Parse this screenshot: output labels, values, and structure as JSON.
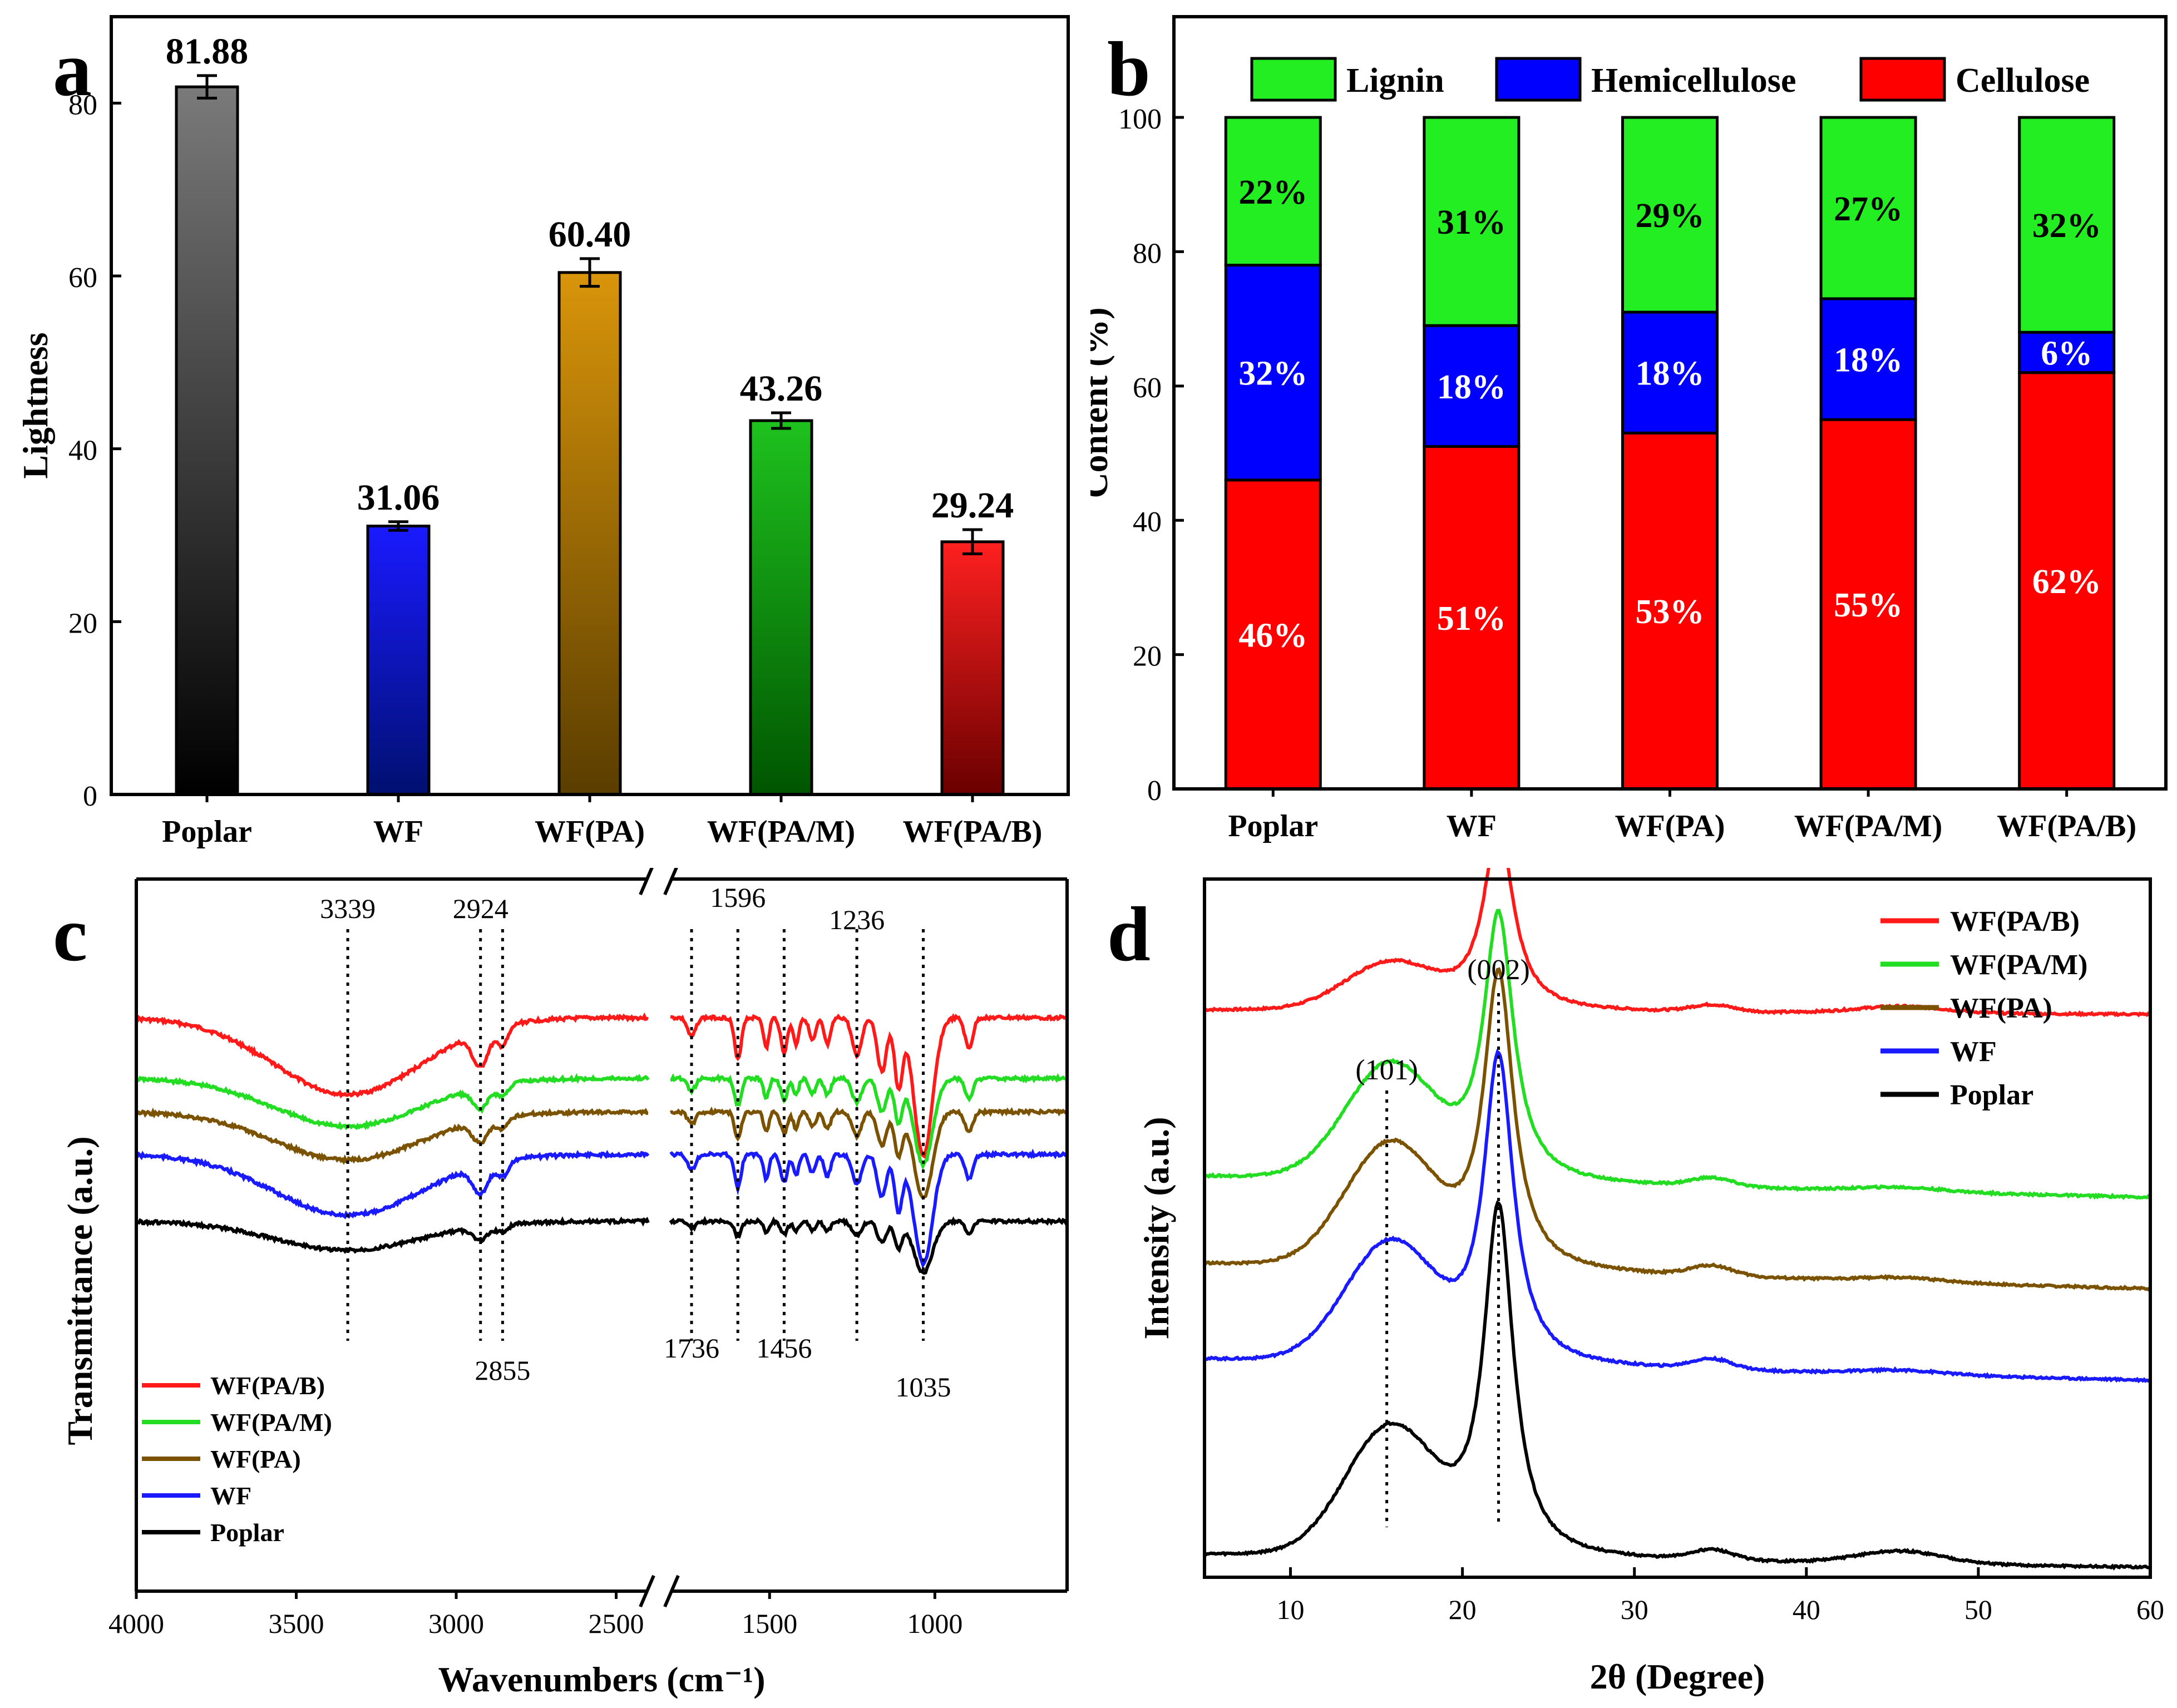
{
  "panels": {
    "a": "a",
    "b": "b",
    "c": "c",
    "d": "d"
  },
  "chart_data": [
    {
      "id": "a",
      "type": "bar",
      "ylabel": "Lightness",
      "xlabel": "",
      "ylim": [
        0,
        90
      ],
      "yticks": [
        0,
        20,
        40,
        60,
        80
      ],
      "categories": [
        "Poplar",
        "WF",
        "WF(PA)",
        "WF(PA/M)",
        "WF(PA/B)"
      ],
      "values": [
        81.88,
        31.06,
        60.4,
        43.26,
        29.24
      ],
      "value_labels": [
        "81.88",
        "31.06",
        "60.40",
        "43.26",
        "29.24"
      ],
      "errors": [
        1.3,
        0.5,
        1.6,
        0.9,
        1.4
      ],
      "colors": [
        [
          "#7a7a7a",
          "#000000"
        ],
        [
          "#1a1aff",
          "#001070"
        ],
        [
          "#d9950a",
          "#5a3d00"
        ],
        [
          "#1ec21e",
          "#005500"
        ],
        [
          "#ff2020",
          "#6a0000"
        ]
      ]
    },
    {
      "id": "b",
      "type": "bar",
      "stacked": true,
      "ylabel": "Content (%)",
      "ylim": [
        0,
        115
      ],
      "yticks": [
        0,
        20,
        40,
        60,
        80,
        100
      ],
      "categories": [
        "Poplar",
        "WF",
        "WF(PA)",
        "WF(PA/M)",
        "WF(PA/B)"
      ],
      "series": [
        {
          "name": "Cellulose",
          "color": "#ff0000",
          "text_color": "#ffffff",
          "values": [
            46,
            51,
            53,
            55,
            62
          ],
          "labels": [
            "46%",
            "51%",
            "53%",
            "55%",
            "62%"
          ]
        },
        {
          "name": "Hemicellulose",
          "color": "#0000ff",
          "text_color": "#ffffff",
          "values": [
            32,
            18,
            18,
            18,
            6
          ],
          "labels": [
            "32%",
            "18%",
            "18%",
            "18%",
            "6%"
          ]
        },
        {
          "name": "Lignin",
          "color": "#22ee22",
          "text_color": "#000000",
          "values": [
            22,
            31,
            29,
            27,
            32
          ],
          "labels": [
            "22%",
            "31%",
            "29%",
            "27%",
            "32%"
          ]
        }
      ],
      "legend": [
        "Lignin",
        "Hemicellulose",
        "Cellulose"
      ]
    },
    {
      "id": "c",
      "type": "line",
      "xlabel": "Wavenumbers (cm⁻¹)",
      "ylabel": "Transmittance (a.u.)",
      "xlim": [
        4000,
        600
      ],
      "axis_break": [
        2400,
        1800
      ],
      "xticks": [
        4000,
        3500,
        3000,
        2500,
        1500,
        1000
      ],
      "legend": [
        "WF(PA/B)",
        "WF(PA/M)",
        "WF(PA)",
        "WF",
        "Poplar"
      ],
      "series": [
        {
          "name": "WF(PA/B)",
          "color": "#ff1a1a",
          "offset": 4.0,
          "scale": 1.2
        },
        {
          "name": "WF(PA/M)",
          "color": "#22dd22",
          "offset": 3.0,
          "scale": 0.75
        },
        {
          "name": "WF(PA)",
          "color": "#7a5200",
          "offset": 2.45,
          "scale": 0.75
        },
        {
          "name": "WF",
          "color": "#1a1aff",
          "offset": 1.75,
          "scale": 0.95
        },
        {
          "name": "Poplar",
          "color": "#000000",
          "offset": 0.65,
          "scale": 0.45
        }
      ],
      "peak_markers": [
        3339,
        2924,
        2855,
        1736,
        1596,
        1456,
        1236,
        1035
      ],
      "peak_labels_top": [
        "3339",
        "2924",
        "1596",
        "1236"
      ],
      "peak_labels_bottom": [
        "2855",
        "1736",
        "1456",
        "1035"
      ]
    },
    {
      "id": "d",
      "type": "line",
      "xlabel": "2θ (Degree)",
      "ylabel": "Intensity (a.u.)",
      "xlim": [
        5,
        60
      ],
      "xticks": [
        10,
        20,
        30,
        40,
        50,
        60
      ],
      "legend": [
        "WF(PA/B)",
        "WF(PA/M)",
        "WF(PA)",
        "WF",
        "Poplar"
      ],
      "series": [
        {
          "name": "WF(PA/B)",
          "color": "#ff1a1a",
          "baseline_start": 6.75,
          "baseline_end": 6.7,
          "peak101": 0.55,
          "peak002": 2.2,
          "hump34": 0.08,
          "hump45": 0.08
        },
        {
          "name": "WF(PA/M)",
          "color": "#22dd22",
          "baseline_start": 4.75,
          "baseline_end": 4.5,
          "peak101": 1.35,
          "peak002": 3.2,
          "hump34": 0.1,
          "hump45": 0.05
        },
        {
          "name": "WF(PA)",
          "color": "#7a5200",
          "baseline_start": 3.7,
          "baseline_end": 3.4,
          "peak101": 1.45,
          "peak002": 3.55,
          "hump34": 0.12,
          "hump45": 0.05
        },
        {
          "name": "WF",
          "color": "#1a1aff",
          "baseline_start": 2.55,
          "baseline_end": 2.3,
          "peak101": 1.4,
          "peak002": 3.7,
          "hump34": 0.12,
          "hump45": 0.05
        },
        {
          "name": "Poplar",
          "color": "#000000",
          "baseline_start": 0.2,
          "baseline_end": 0.05,
          "peak101": 1.5,
          "peak002": 4.2,
          "hump34": 0.12,
          "hump45": 0.15
        }
      ],
      "peak_labels": [
        {
          "text": "(101)",
          "x": 15.6
        },
        {
          "text": "(002)",
          "x": 22.1
        }
      ]
    }
  ]
}
